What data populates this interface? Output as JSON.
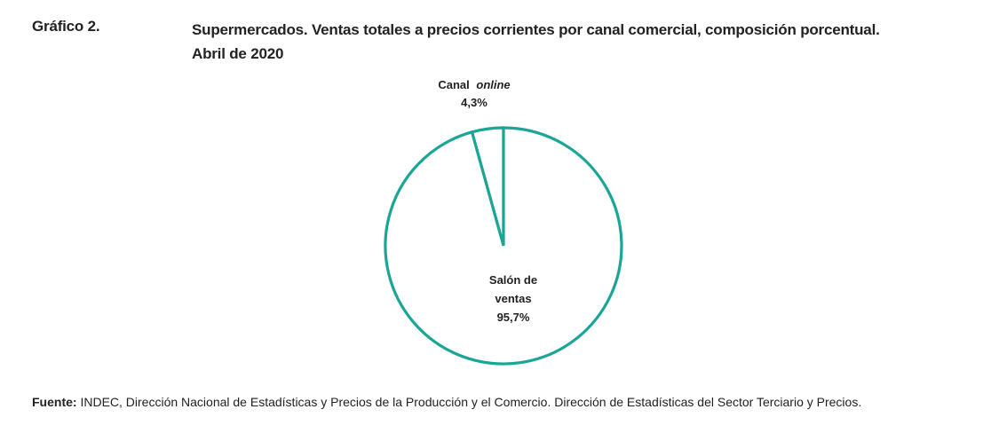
{
  "figure": {
    "label": "Gráfico 2.",
    "title_line1": "Supermercados. Ventas totales a precios corrientes por canal comercial, composición porcentual.",
    "title_line2": "Abril de 2020"
  },
  "chart_data": {
    "type": "pie",
    "title": "Supermercados. Ventas totales a precios corrientes por canal comercial, composición porcentual. Abril de 2020",
    "slices": [
      {
        "name": "Canal online",
        "name_main": "Canal",
        "name_italic": "online",
        "value": 4.3,
        "value_label": "4,3%"
      },
      {
        "name": "Salón de ventas",
        "name_line1": "Salón de",
        "name_line2": "ventas",
        "value": 95.7,
        "value_label": "95,7%"
      }
    ],
    "stroke_color": "#1aa596",
    "fill_color": "#ffffff"
  },
  "source": {
    "label": "Fuente:",
    "text": "INDEC, Dirección Nacional de Estadísticas y Precios de la Producción y el Comercio. Dirección de Estadísticas del Sector Terciario y Precios."
  }
}
